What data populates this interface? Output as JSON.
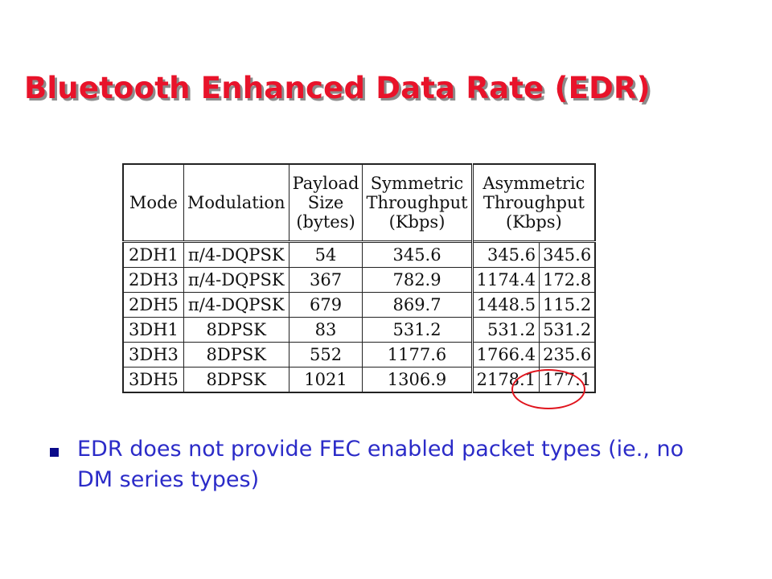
{
  "slide": {
    "title": "Bluetooth Enhanced Data Rate (EDR)"
  },
  "table": {
    "headers": [
      [
        "Mode"
      ],
      [
        "Modulation"
      ],
      [
        "Payload",
        "Size",
        "(bytes)"
      ],
      [
        "Symmetric",
        "Throughput",
        "(Kbps)"
      ],
      [
        "Asymmetric",
        "Throughput",
        "(Kbps)"
      ]
    ],
    "rows": [
      {
        "mode": "2DH1",
        "modulation": "π/4-DQPSK",
        "payload": "54",
        "symmetric": "345.6",
        "asym_a": "345.6",
        "asym_b": "345.6"
      },
      {
        "mode": "2DH3",
        "modulation": "π/4-DQPSK",
        "payload": "367",
        "symmetric": "782.9",
        "asym_a": "1174.4",
        "asym_b": "172.8"
      },
      {
        "mode": "2DH5",
        "modulation": "π/4-DQPSK",
        "payload": "679",
        "symmetric": "869.7",
        "asym_a": "1448.5",
        "asym_b": "115.2"
      },
      {
        "mode": "3DH1",
        "modulation": "8DPSK",
        "payload": "83",
        "symmetric": "531.2",
        "asym_a": "531.2",
        "asym_b": "531.2"
      },
      {
        "mode": "3DH3",
        "modulation": "8DPSK",
        "payload": "552",
        "symmetric": "1177.6",
        "asym_a": "1766.4",
        "asym_b": "235.6"
      },
      {
        "mode": "3DH5",
        "modulation": "8DPSK",
        "payload": "1021",
        "symmetric": "1306.9",
        "asym_a": "2178.1",
        "asym_b": "177.1"
      }
    ],
    "highlighted_value": "2178.1",
    "highlight_color": "#e0141d"
  },
  "bullets": [
    {
      "text": "EDR does not provide FEC enabled packet types (ie., no DM series types)"
    }
  ],
  "colors": {
    "title": "#e8132a",
    "bullet_text": "#2b2bc8",
    "bullet_marker": "#0a0a8a"
  }
}
